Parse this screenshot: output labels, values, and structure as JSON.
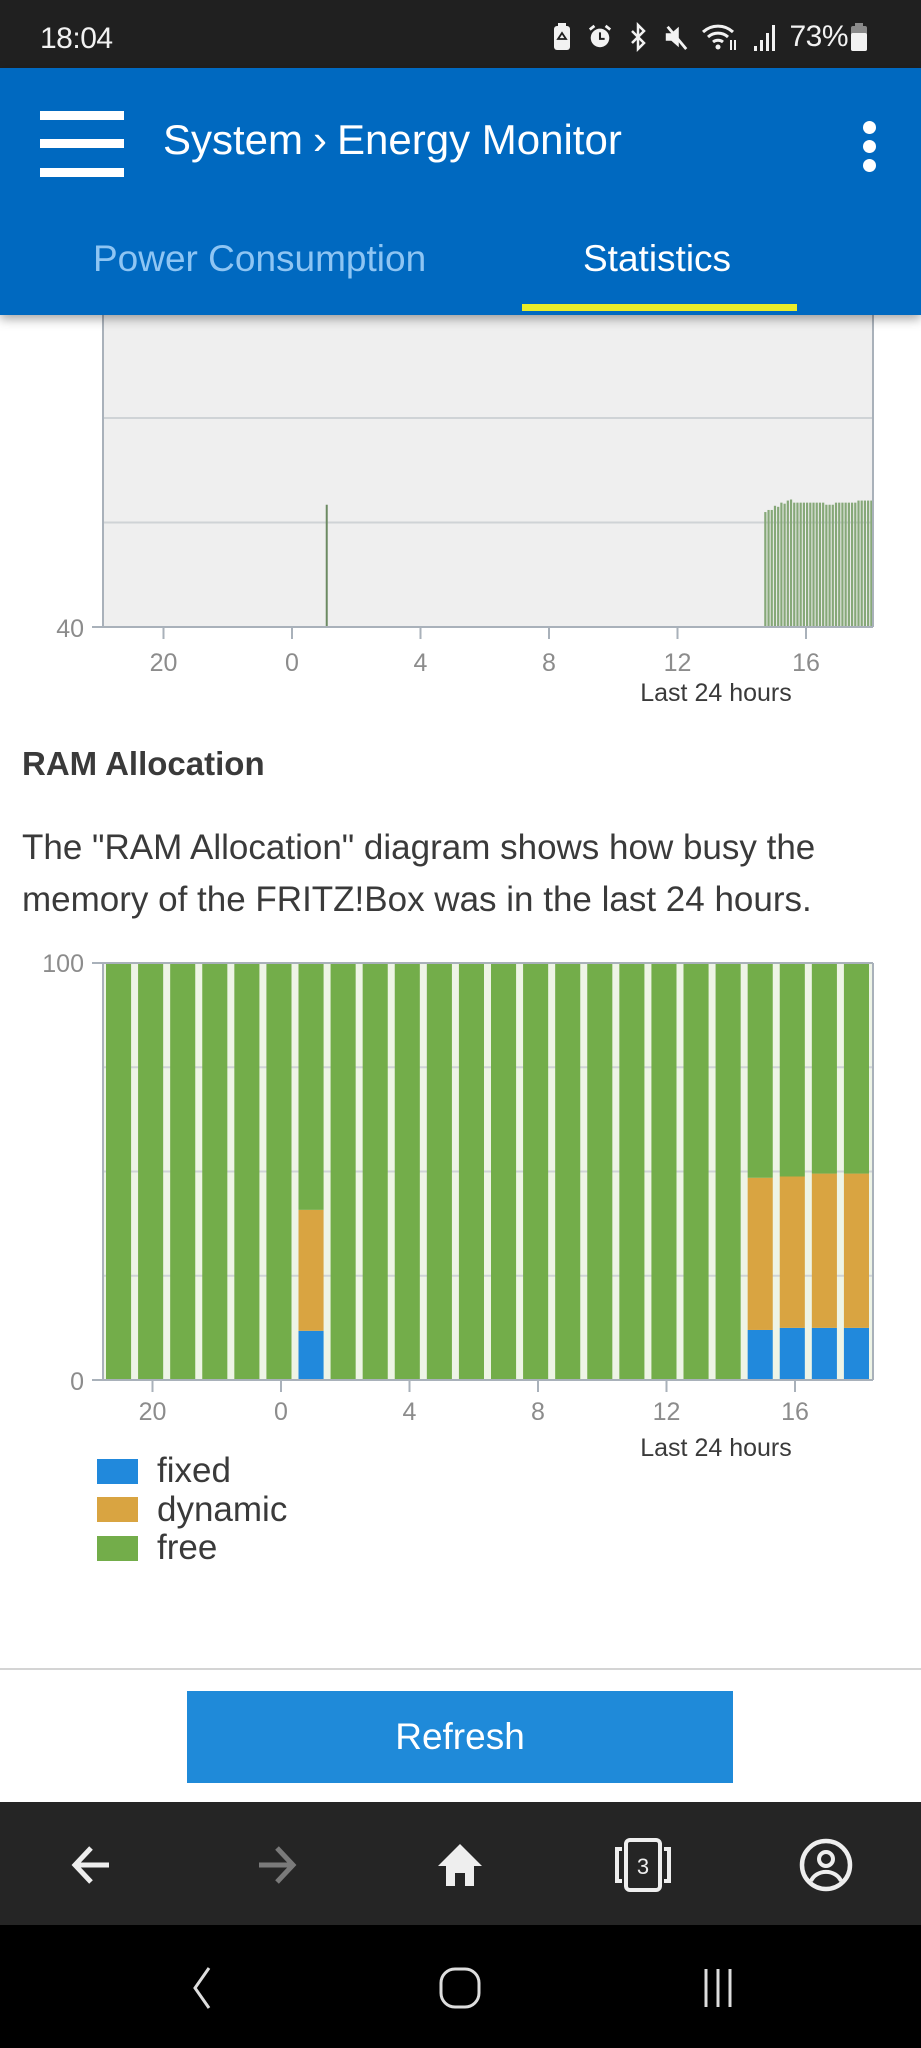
{
  "status_bar": {
    "time": "18:04",
    "battery_percent": "73%",
    "icons": [
      "battery-saver-icon",
      "alarm-icon",
      "bluetooth-icon",
      "mute-icon",
      "wifi-icon",
      "signal-icon",
      "battery-icon"
    ]
  },
  "header": {
    "breadcrumb_parent": "System",
    "breadcrumb_separator": "›",
    "breadcrumb_current": "Energy Monitor",
    "menu_icon": "hamburger-menu-icon",
    "more_icon": "kebab-menu-icon",
    "tabs": [
      {
        "label": "Power Consumption",
        "active": false
      },
      {
        "label": "Statistics",
        "active": true
      }
    ]
  },
  "colors": {
    "header_blue": "#0069c0",
    "tab_active_underline": "#e9ec2a",
    "fixed": "#2189dc",
    "dynamic": "#d9a441",
    "free": "#73ad4a",
    "cpu_bar": "#86a878",
    "refresh_button": "#1f8ad9"
  },
  "ram_section": {
    "heading": "RAM Allocation",
    "description": "The \"RAM Allocation\" diagram shows how busy the memory of the FRITZ!Box was in the last 24 hours."
  },
  "refresh_label": "Refresh",
  "browser_nav": {
    "tab_count": "3",
    "buttons": [
      "back-arrow-icon",
      "forward-arrow-icon",
      "home-icon",
      "tabs-icon",
      "account-icon"
    ]
  },
  "chart_data": [
    {
      "type": "bar",
      "title": "",
      "xlabel": "Last 24 hours",
      "ylabel": "",
      "ylim": [
        40,
        70
      ],
      "y_tick_labels_visible": [
        "40"
      ],
      "y_gridlines": [
        50,
        60
      ],
      "x_tick_labels": [
        "20",
        "0",
        "4",
        "8",
        "12",
        "16"
      ],
      "x_tick_positions_hours": [
        -4,
        0,
        4,
        8,
        12,
        16
      ],
      "xlim_hours": [
        -5.3,
        18.1
      ],
      "grid": true,
      "note": "Chart is partially scrolled off the top; only the lower part is visible.",
      "series": [
        {
          "name": "usage",
          "color": "#86a878",
          "points": [
            {
              "x": 1.05,
              "y": 51.7
            },
            {
              "x": 14.7,
              "y": 51.0
            },
            {
              "x": 14.8,
              "y": 51.2
            },
            {
              "x": 14.9,
              "y": 51.2
            },
            {
              "x": 15.0,
              "y": 51.6
            },
            {
              "x": 15.1,
              "y": 51.5
            },
            {
              "x": 15.2,
              "y": 51.9
            },
            {
              "x": 15.3,
              "y": 51.8
            },
            {
              "x": 15.4,
              "y": 52.1
            },
            {
              "x": 15.5,
              "y": 52.2
            },
            {
              "x": 15.6,
              "y": 51.9
            },
            {
              "x": 15.7,
              "y": 51.9
            },
            {
              "x": 15.8,
              "y": 51.9
            },
            {
              "x": 15.9,
              "y": 51.9
            },
            {
              "x": 16.0,
              "y": 51.9
            },
            {
              "x": 16.1,
              "y": 51.9
            },
            {
              "x": 16.2,
              "y": 51.9
            },
            {
              "x": 16.3,
              "y": 51.9
            },
            {
              "x": 16.4,
              "y": 51.9
            },
            {
              "x": 16.5,
              "y": 51.9
            },
            {
              "x": 16.6,
              "y": 51.7
            },
            {
              "x": 16.7,
              "y": 51.7
            },
            {
              "x": 16.8,
              "y": 51.7
            },
            {
              "x": 16.9,
              "y": 51.9
            },
            {
              "x": 17.0,
              "y": 51.9
            },
            {
              "x": 17.1,
              "y": 51.9
            },
            {
              "x": 17.2,
              "y": 51.9
            },
            {
              "x": 17.3,
              "y": 51.9
            },
            {
              "x": 17.4,
              "y": 51.9
            },
            {
              "x": 17.5,
              "y": 51.9
            },
            {
              "x": 17.6,
              "y": 52.1
            },
            {
              "x": 17.7,
              "y": 52.1
            },
            {
              "x": 17.8,
              "y": 52.1
            },
            {
              "x": 17.9,
              "y": 52.1
            },
            {
              "x": 18.0,
              "y": 52.1
            }
          ]
        }
      ]
    },
    {
      "type": "bar",
      "stacked": true,
      "title": "RAM Allocation",
      "xlabel": "Last 24 hours",
      "ylabel": "",
      "ylim": [
        0,
        100
      ],
      "y_tick_labels": [
        "0",
        "100"
      ],
      "y_gridlines": [
        25,
        50,
        75
      ],
      "x_tick_labels": [
        "20",
        "0",
        "4",
        "8",
        "12",
        "16"
      ],
      "x_tick_positions_hours": [
        -4,
        0,
        4,
        8,
        12,
        16
      ],
      "categories_hours": [
        -5,
        -4,
        -3,
        -2,
        -1,
        0,
        1,
        2,
        3,
        4,
        5,
        6,
        7,
        8,
        9,
        10,
        11,
        12,
        13,
        14,
        15,
        16,
        17,
        18
      ],
      "grid": true,
      "legend": "bottom-left",
      "series": [
        {
          "name": "fixed",
          "color": "#2189dc",
          "values": [
            0,
            0,
            0,
            0,
            0,
            0,
            11.8,
            0,
            0,
            0,
            0,
            0,
            0,
            0,
            0,
            0,
            0,
            0,
            0,
            0,
            12.0,
            12.5,
            12.5,
            12.5
          ]
        },
        {
          "name": "dynamic",
          "color": "#d9a441",
          "values": [
            0,
            0,
            0,
            0,
            0,
            0,
            29.0,
            0,
            0,
            0,
            0,
            0,
            0,
            0,
            0,
            0,
            0,
            0,
            0,
            0,
            36.5,
            36.3,
            37.0,
            37.0
          ]
        },
        {
          "name": "free",
          "color": "#73ad4a",
          "values": [
            100,
            100,
            100,
            100,
            100,
            100,
            59.2,
            100,
            100,
            100,
            100,
            100,
            100,
            100,
            100,
            100,
            100,
            100,
            100,
            100,
            51.5,
            51.2,
            50.5,
            50.5
          ]
        }
      ]
    }
  ]
}
